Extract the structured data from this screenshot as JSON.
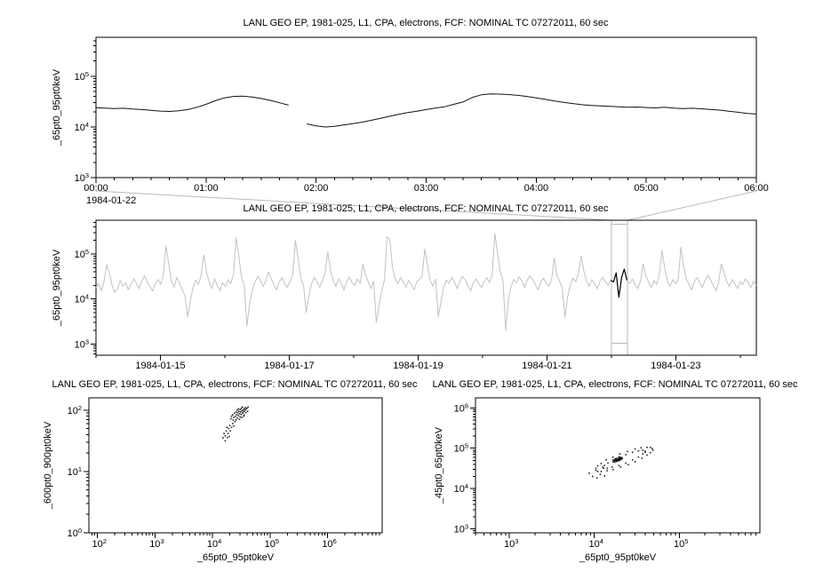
{
  "window": {
    "background": "#ffffff",
    "foreground": "#000000",
    "context_gray": "#c2c2c2",
    "connector_gray": "#b9b9b9"
  },
  "chart_data": [
    {
      "id": "zoom-timeseries",
      "type": "line",
      "title": "LANL GEO EP, 1981-025, L1, CPA, electrons, FCF: NOMINAL TC 07272011, 60 sec",
      "ylabel": "_65pt0_95pt0keV",
      "y_axis": {
        "kind": "log",
        "log_range": [
          3,
          5.77
        ],
        "tick_exponents": [
          3,
          4,
          5
        ]
      },
      "x_axis": {
        "kind": "time",
        "date_label": "1984-01-22",
        "tick_labels": [
          "00:00",
          "01:00",
          "02:00",
          "03:00",
          "04:00",
          "05:00",
          "06:00"
        ],
        "range_hours": [
          0,
          6
        ],
        "minor_step_minutes": 10
      },
      "series": {
        "step_minutes": 5,
        "units_scale": 1000,
        "values": [
          24,
          23.6,
          23,
          23.4,
          22.6,
          22,
          21.2,
          20.6,
          20.2,
          20.8,
          22,
          24.5,
          28,
          33,
          37.5,
          40,
          40.5,
          39,
          36.5,
          33.5,
          30,
          27,
          null,
          11.5,
          10.5,
          10,
          10.3,
          10.9,
          11.6,
          12.4,
          13.5,
          14.8,
          16.2,
          17.8,
          19.2,
          20.5,
          22,
          23.5,
          25,
          28,
          31,
          38,
          43,
          45,
          44.5,
          43.5,
          42,
          40,
          37.5,
          35,
          32.5,
          30.5,
          29,
          27.5,
          26.5,
          26,
          25.5,
          25,
          24.5,
          24.8,
          24.2,
          23.8,
          24.5,
          23.5,
          23,
          23.4,
          22.8,
          22.2,
          21.5,
          20.5,
          19.5,
          18.5,
          18
        ]
      }
    },
    {
      "id": "context-overview",
      "type": "line",
      "title": "LANL GEO EP, 1981-025, L1, CPA, electrons, FCF: NOMINAL TC 07272011, 60 sec",
      "ylabel": "_65pt0_95pt0keV",
      "y_axis": {
        "kind": "log",
        "log_range": [
          2.75,
          5.75
        ],
        "tick_exponents": [
          3,
          4,
          5
        ]
      },
      "x_axis": {
        "kind": "date",
        "tick_labels": [
          "1984-01-15",
          "1984-01-17",
          "1984-01-19",
          "1984-01-21",
          "1984-01-23"
        ],
        "tick_days": [
          15,
          17,
          19,
          21,
          23
        ],
        "minor_days": [
          14,
          16,
          18,
          20,
          22,
          24
        ],
        "range_days": [
          14,
          24.25
        ]
      },
      "series": {
        "start_day": 14.0,
        "units_scale": 1000,
        "values": [
          18,
          22,
          15,
          25,
          58,
          36,
          20,
          14,
          17,
          26,
          19,
          23,
          16,
          21,
          28,
          22,
          17,
          25,
          33,
          24,
          19,
          15,
          22,
          27,
          21,
          35,
          150,
          60,
          25,
          18,
          30,
          22,
          16,
          12,
          4,
          9,
          18,
          26,
          21,
          33,
          95,
          40,
          24,
          17,
          28,
          20,
          15,
          23,
          19,
          27,
          22,
          35,
          230,
          90,
          30,
          21,
          2.5,
          8,
          16,
          24,
          32,
          26,
          19,
          25,
          40,
          28,
          21,
          16,
          24,
          30,
          22,
          18,
          25,
          34,
          200,
          80,
          28,
          20,
          5,
          12,
          22,
          30,
          24,
          18,
          26,
          38,
          110,
          45,
          26,
          19,
          28,
          22,
          16,
          24,
          31,
          23,
          20,
          28,
          22,
          60,
          35,
          24,
          17,
          25,
          3,
          7,
          15,
          26,
          240,
          210,
          50,
          28,
          22,
          30,
          24,
          18,
          26,
          21,
          16,
          24,
          27,
          33,
          130,
          55,
          26,
          19,
          28,
          4,
          9,
          18,
          26,
          22,
          30,
          24,
          17,
          25,
          32,
          26,
          20,
          15,
          23,
          28,
          22,
          18,
          24,
          30,
          23,
          35,
          290,
          100,
          40,
          26,
          2,
          10,
          19,
          27,
          23,
          31,
          25,
          18,
          26,
          33,
          27,
          21,
          16,
          24,
          29,
          23,
          19,
          26,
          80,
          34,
          25,
          18,
          4,
          11,
          21,
          29,
          24,
          36,
          90,
          42,
          25,
          19,
          27,
          22,
          17,
          25,
          30,
          24,
          20,
          26,
          24,
          38,
          11,
          30,
          46,
          26,
          22,
          28,
          21,
          17,
          25,
          60,
          33,
          24,
          18,
          26,
          21,
          35,
          120,
          48,
          25,
          19,
          27,
          22,
          26,
          140,
          55,
          28,
          21,
          16,
          24,
          30,
          23,
          18,
          26,
          34,
          27,
          20,
          15,
          23,
          60,
          38,
          25,
          19,
          27,
          22,
          17,
          24,
          21,
          28,
          23,
          18,
          25,
          20
        ]
      },
      "highlight": {
        "start_index": 191,
        "end_index": 197,
        "color": "#000000"
      },
      "selection_box": {
        "start_day": 22.0,
        "end_day": 22.25
      }
    },
    {
      "id": "scatter-600-900",
      "type": "scatter",
      "title": "LANL GEO EP, 1981-025, L1, CPA, electrons, FCF: NOMINAL TC 07272011, 60 sec",
      "xlabel": "_65pt0_95pt0keV",
      "ylabel": "_600pt0_900pt0keV",
      "x_axis": {
        "kind": "log",
        "log_range": [
          1.85,
          6.95
        ],
        "tick_exponents": [
          2,
          3,
          4,
          5,
          6
        ]
      },
      "y_axis": {
        "kind": "log",
        "log_range": [
          0,
          2.2
        ],
        "tick_exponents": [
          0,
          1,
          2
        ]
      },
      "points_log10": [
        [
          4.32,
          1.86
        ],
        [
          4.35,
          1.92
        ],
        [
          4.37,
          1.88
        ],
        [
          4.38,
          1.95
        ],
        [
          4.4,
          1.9
        ],
        [
          4.41,
          1.97
        ],
        [
          4.42,
          1.93
        ],
        [
          4.43,
          2.0
        ],
        [
          4.44,
          1.96
        ],
        [
          4.45,
          1.91
        ],
        [
          4.45,
          2.02
        ],
        [
          4.46,
          1.98
        ],
        [
          4.47,
          1.94
        ],
        [
          4.48,
          2.01
        ],
        [
          4.48,
          1.89
        ],
        [
          4.49,
          1.97
        ],
        [
          4.5,
          2.03
        ],
        [
          4.5,
          1.93
        ],
        [
          4.51,
          1.99
        ],
        [
          4.52,
          1.95
        ],
        [
          4.52,
          2.05
        ],
        [
          4.53,
          2.0
        ],
        [
          4.54,
          1.97
        ],
        [
          4.55,
          2.02
        ],
        [
          4.55,
          1.92
        ],
        [
          4.56,
          1.99
        ],
        [
          4.57,
          2.04
        ],
        [
          4.58,
          1.96
        ],
        [
          4.58,
          2.01
        ],
        [
          4.6,
          2.03
        ],
        [
          4.61,
          1.98
        ],
        [
          4.62,
          2.05
        ],
        [
          4.36,
          1.84
        ],
        [
          4.39,
          1.81
        ],
        [
          4.43,
          1.87
        ],
        [
          4.47,
          1.85
        ],
        [
          4.51,
          1.88
        ],
        [
          4.54,
          1.9
        ],
        [
          4.33,
          1.9
        ],
        [
          4.41,
          1.84
        ],
        [
          4.18,
          1.55
        ],
        [
          4.2,
          1.62
        ],
        [
          4.22,
          1.58
        ],
        [
          4.24,
          1.66
        ],
        [
          4.25,
          1.72
        ],
        [
          4.27,
          1.62
        ],
        [
          4.28,
          1.7
        ],
        [
          4.3,
          1.75
        ],
        [
          4.31,
          1.66
        ],
        [
          4.33,
          1.72
        ],
        [
          4.35,
          1.78
        ],
        [
          4.26,
          1.55
        ],
        [
          4.22,
          1.5
        ],
        [
          4.37,
          1.74
        ],
        [
          4.29,
          1.57
        ]
      ]
    },
    {
      "id": "scatter-45-65",
      "type": "scatter",
      "title": "LANL GEO EP, 1981-025, L1, CPA, electrons, FCF: NOMINAL TC 07272011, 60 sec",
      "xlabel": "_65pt0_95pt0keV",
      "ylabel": "_45pt0_65pt0keV",
      "x_axis": {
        "kind": "log",
        "log_range": [
          2.6,
          5.95
        ],
        "tick_exponents": [
          3,
          4,
          5
        ]
      },
      "y_axis": {
        "kind": "log",
        "log_range": [
          2.9,
          6.25
        ],
        "tick_exponents": [
          3,
          4,
          5,
          6
        ]
      },
      "points_log10": [
        [
          4.68,
          4.99
        ],
        [
          4.66,
          5.02
        ],
        [
          4.62,
          5.02
        ],
        [
          4.55,
          5.01
        ],
        [
          4.48,
          4.98
        ],
        [
          4.39,
          4.92
        ],
        [
          4.3,
          4.86
        ],
        [
          4.22,
          4.78
        ],
        [
          4.14,
          4.71
        ],
        [
          4.08,
          4.62
        ],
        [
          4.04,
          4.56
        ],
        [
          4.02,
          4.5
        ],
        [
          4.02,
          4.45
        ],
        [
          4.04,
          4.42
        ],
        [
          4.08,
          4.42
        ],
        [
          4.15,
          4.44
        ],
        [
          4.22,
          4.47
        ],
        [
          4.31,
          4.53
        ],
        [
          4.4,
          4.59
        ],
        [
          4.48,
          4.66
        ],
        [
          4.56,
          4.75
        ],
        [
          4.62,
          4.83
        ],
        [
          4.66,
          4.89
        ],
        [
          4.69,
          4.95
        ],
        [
          4.6,
          4.93
        ],
        [
          4.57,
          4.95
        ],
        [
          4.52,
          4.93
        ],
        [
          4.45,
          4.9
        ],
        [
          4.37,
          4.84
        ],
        [
          4.29,
          4.78
        ],
        [
          4.22,
          4.71
        ],
        [
          4.16,
          4.63
        ],
        [
          4.12,
          4.57
        ],
        [
          4.1,
          4.53
        ],
        [
          4.11,
          4.5
        ],
        [
          4.15,
          4.5
        ],
        [
          4.21,
          4.53
        ],
        [
          4.29,
          4.57
        ],
        [
          4.37,
          4.63
        ],
        [
          4.45,
          4.71
        ],
        [
          4.52,
          4.78
        ],
        [
          4.57,
          4.86
        ],
        [
          4.6,
          4.9
        ],
        [
          4.22,
          4.66
        ],
        [
          4.23,
          4.69
        ],
        [
          4.24,
          4.68
        ],
        [
          4.24,
          4.72
        ],
        [
          4.25,
          4.7
        ],
        [
          4.25,
          4.74
        ],
        [
          4.26,
          4.71
        ],
        [
          4.26,
          4.75
        ],
        [
          4.27,
          4.72
        ],
        [
          4.27,
          4.68
        ],
        [
          4.28,
          4.74
        ],
        [
          4.28,
          4.71
        ],
        [
          4.29,
          4.75
        ],
        [
          4.29,
          4.72
        ],
        [
          4.3,
          4.74
        ],
        [
          4.3,
          4.7
        ],
        [
          4.31,
          4.76
        ],
        [
          4.31,
          4.72
        ],
        [
          4.32,
          4.77
        ],
        [
          4.32,
          4.73
        ],
        [
          4.33,
          4.75
        ],
        [
          4.24,
          4.65
        ],
        [
          4.26,
          4.67
        ],
        [
          4.3,
          4.78
        ],
        [
          4.27,
          4.7
        ],
        [
          4.29,
          4.69
        ],
        [
          3.98,
          4.3
        ],
        [
          4.03,
          4.26
        ],
        [
          4.07,
          4.35
        ],
        [
          3.94,
          4.38
        ],
        [
          4.12,
          4.31
        ]
      ]
    }
  ]
}
